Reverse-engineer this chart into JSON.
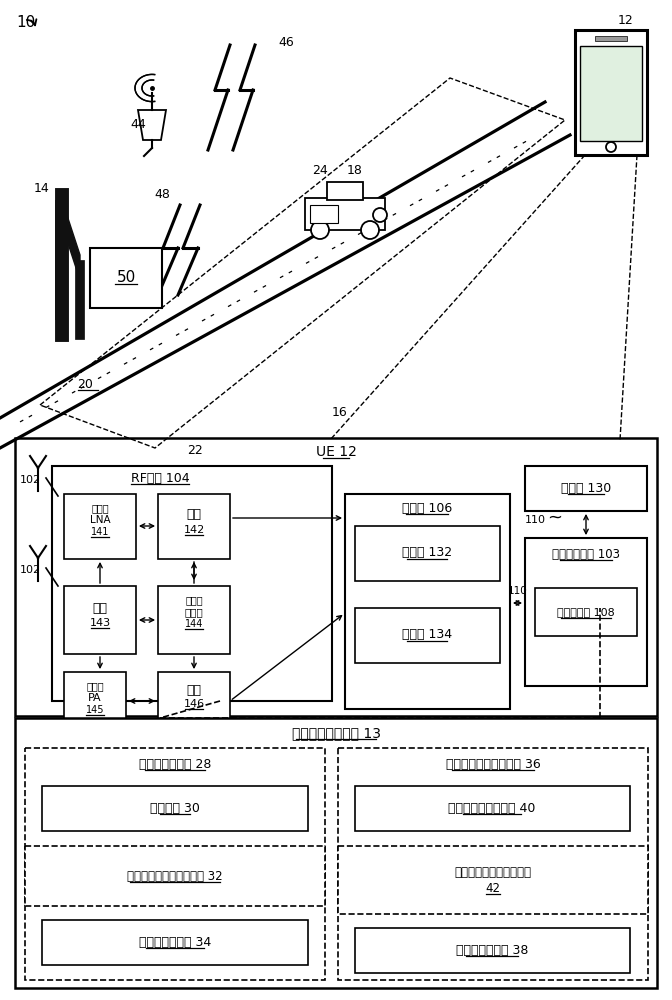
{
  "fig_width": 6.72,
  "fig_height": 10.0,
  "bg": "#ffffff",
  "t10": "10",
  "t12": "12",
  "t14": "14",
  "t16": "16",
  "t18": "18",
  "t20": "20",
  "t22": "22",
  "t24": "24",
  "t44": "44",
  "t46": "46",
  "t48": "48",
  "t50": "50",
  "t102a": "102",
  "t102b": "102",
  "t110": "110",
  "ue": "UE 12",
  "rf": "RF前端 104",
  "lna": "（诸）\nLNA\n141",
  "sw142": "开关\n142",
  "sw143": "开关\n143",
  "flt": "（诸）\n滤波器\n144",
  "pa": "（诸）\nPA\n145",
  "sw146": "开关\n146",
  "trx": "收发机 106",
  "rx": "接收机 132",
  "tx": "发射机 134",
  "stor": "存储器 130",
  "proc": "（诸）处理器 103",
  "modem": "调制解调器 108",
  "coex": "共存传输管理组件 13",
  "pos": "位置确定器组件 28",
  "geo": "地理位置 30",
  "add": "附加传送要求确定器组件 32",
  "mode": "（诸）共存模式 34",
  "txcfg": "传送输出功率配置组件 36",
  "txreq": "传送发射要求确定器 40",
  "txred1": "传送输出功率降低确定器",
  "txred2": "42",
  "txval": "传送输出功率值 38"
}
